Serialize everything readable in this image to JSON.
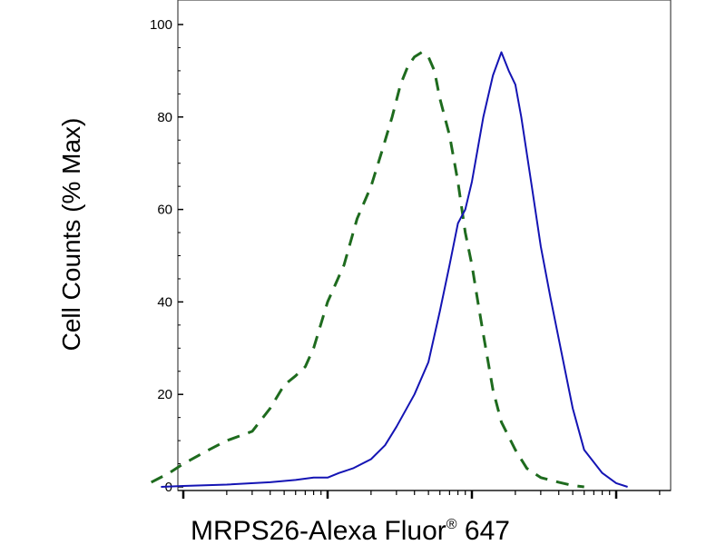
{
  "chart_data": {
    "type": "line",
    "title": "",
    "ylabel": "Cell Counts (% Max)",
    "xlabel": "MRPS26-Alexa Fluor",
    "xlabel_mark": "®",
    "xlabel_suffix": " 647",
    "x_scale": "log",
    "xlim": [
      0.4,
      4000
    ],
    "ylim": [
      0,
      100
    ],
    "yticks": [
      0,
      20,
      40,
      60,
      80,
      100
    ],
    "ytick_labels": [
      "0",
      "20",
      "40",
      "60",
      "80",
      "100"
    ],
    "x_major_ticks": [
      1,
      10,
      100,
      1000
    ],
    "grid": false,
    "legend": "none",
    "series": [
      {
        "style": "dashed",
        "color": "#1e6b1e",
        "x": [
          0.6,
          0.8,
          1,
          1.5,
          2,
          3,
          4,
          5,
          6,
          7,
          8,
          10,
          13,
          16,
          20,
          24,
          28,
          32,
          36,
          40,
          45,
          50,
          55,
          60,
          70,
          80,
          90,
          100,
          110,
          120,
          140,
          160,
          200,
          240,
          300,
          400,
          500,
          600
        ],
        "y": [
          1,
          3,
          5,
          8,
          10,
          12,
          17,
          22,
          24,
          26,
          30,
          40,
          48,
          58,
          65,
          73,
          80,
          87,
          91,
          93,
          94,
          93,
          90,
          84,
          76,
          66,
          55,
          48,
          40,
          33,
          21,
          14,
          8,
          4,
          2,
          1,
          0.3,
          0
        ]
      },
      {
        "style": "solid",
        "color": "#1414b4",
        "x": [
          0.7,
          1,
          2,
          4,
          6,
          8,
          10,
          12,
          15,
          20,
          25,
          30,
          40,
          50,
          60,
          70,
          80,
          90,
          100,
          120,
          140,
          160,
          180,
          200,
          220,
          260,
          300,
          350,
          400,
          500,
          600,
          800,
          1000,
          1200
        ],
        "y": [
          0,
          0.2,
          0.5,
          1,
          1.5,
          2,
          2,
          3,
          4,
          6,
          9,
          13,
          20,
          27,
          38,
          48,
          57,
          60,
          66,
          80,
          89,
          94,
          90,
          87,
          80,
          65,
          52,
          41,
          32,
          17,
          8,
          3,
          0.8,
          0
        ]
      }
    ]
  }
}
